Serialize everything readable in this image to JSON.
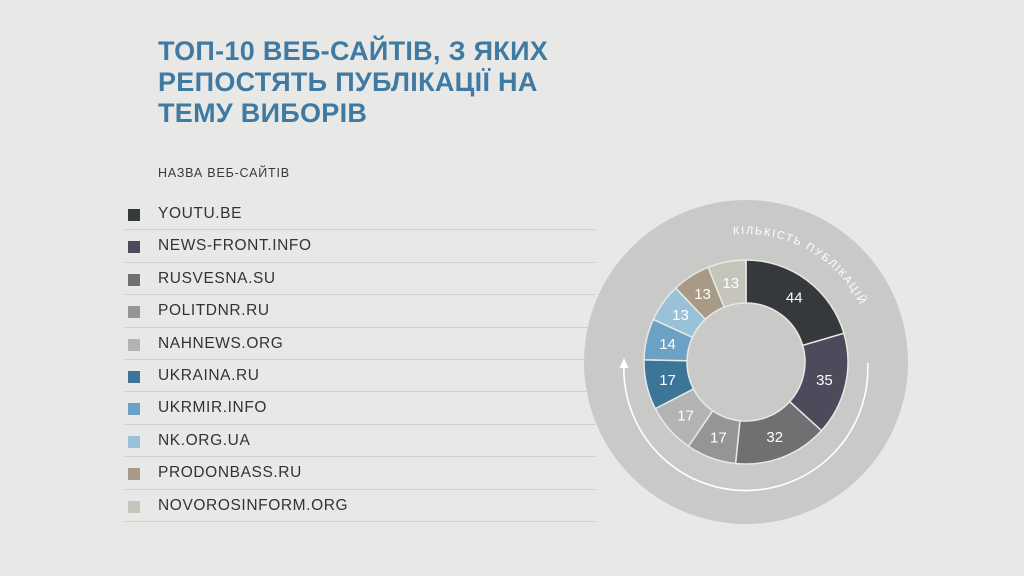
{
  "title": "ТОП-10 ВЕБ-САЙТІВ, З ЯКИХ РЕПОСТЯТЬ ПУБЛІКАЦІЇ НА ТЕМУ ВИБОРІВ",
  "legend_title": "НАЗВА ВЕБ-САЙТІВ",
  "ring_label": "КІЛЬКІСТЬ ПУБЛІКАЦІЙ",
  "colors": {
    "background": "#e8e8e6",
    "outer_disc": "#c9c9c7",
    "title": "#3f7aa3"
  },
  "chart_data": {
    "type": "pie",
    "variant": "donut",
    "title": "ТОП-10 ВЕБ-САЙТІВ, З ЯКИХ РЕПОСТЯТЬ ПУБЛІКАЦІЇ НА ТЕМУ ВИБОРІВ",
    "legend_title": "НАЗВА ВЕБ-САЙТІВ",
    "value_label": "КІЛЬКІСТЬ ПУБЛІКАЦІЙ",
    "legend_placement": "left",
    "categories": [
      "YOUTU.BE",
      "NEWS-FRONT.INFO",
      "RUSVESNA.SU",
      "POLITDNR.RU",
      "NAHNEWS.ORG",
      "UKRAINA.RU",
      "UKRMIR.INFO",
      "NK.ORG.UA",
      "PRODONBASS.RU",
      "NOVOROSINFORM.ORG"
    ],
    "values": [
      44,
      35,
      32,
      17,
      17,
      17,
      14,
      13,
      13,
      13
    ],
    "colors": [
      "#36393b",
      "#4d4a5c",
      "#6e7071",
      "#939596",
      "#b2b3b3",
      "#3b7699",
      "#6aa1c4",
      "#99c2d8",
      "#a89a87",
      "#c6c5bb"
    ],
    "label_colors": [
      "#ffffff",
      "#ffffff",
      "#ffffff",
      "#ffffff",
      "#ffffff",
      "#ffffff",
      "#ffffff",
      "#ffffff",
      "#ffffff",
      "#ffffff"
    ]
  }
}
